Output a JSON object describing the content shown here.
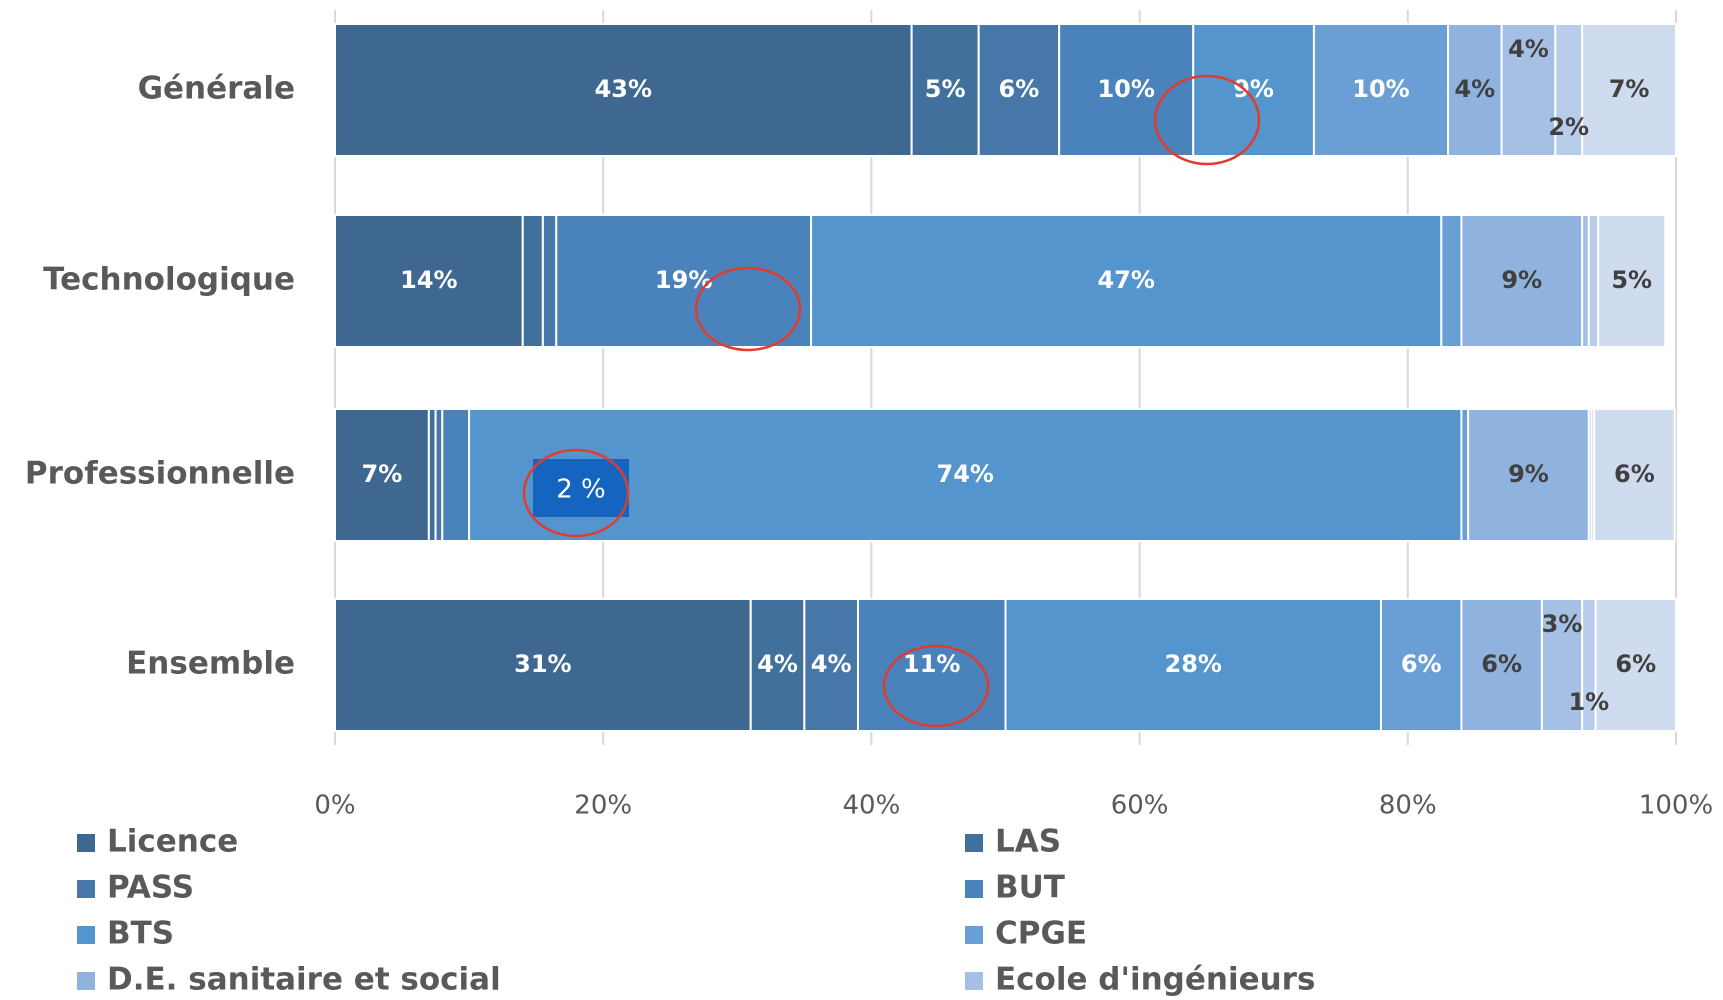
{
  "chart_data": {
    "type": "stacked-bar-horizontal",
    "categories": [
      "Générale",
      "Technologique",
      "Professionnelle",
      "Ensemble"
    ],
    "series": [
      {
        "name": "Licence",
        "color": "#3e6890",
        "values": [
          43,
          14,
          7,
          31
        ],
        "value_labels": [
          "43%",
          "14%",
          "7%",
          "31%"
        ]
      },
      {
        "name": "LAS",
        "color": "#41709c",
        "values": [
          5,
          1.5,
          0.5,
          4
        ],
        "value_labels": [
          "5%",
          null,
          null,
          "4%"
        ]
      },
      {
        "name": "PASS",
        "color": "#4677a8",
        "values": [
          6,
          1,
          0.5,
          4
        ],
        "value_labels": [
          "6%",
          null,
          null,
          "4%"
        ]
      },
      {
        "name": "BUT",
        "color": "#4a82bb",
        "values": [
          10,
          19,
          2,
          11
        ],
        "value_labels": [
          "10%",
          "19%",
          null,
          "11%"
        ]
      },
      {
        "name": "BTS",
        "color": "#5595ce",
        "values": [
          9,
          47,
          74,
          28
        ],
        "value_labels": [
          "9%",
          "47%",
          "74%",
          "28%"
        ]
      },
      {
        "name": "CPGE",
        "color": "#6a9fd6",
        "values": [
          10,
          1.5,
          0.5,
          6
        ],
        "value_labels": [
          "10%",
          null,
          null,
          "6%"
        ]
      },
      {
        "name": "D.E. sanitaire et social",
        "color": "#8fb3de",
        "values": [
          4,
          9,
          9,
          6
        ],
        "value_labels": [
          "4%",
          "9%",
          "9%",
          "6%"
        ]
      },
      {
        "name": "Ecole d'ingénieurs",
        "color": "#a5c0e4",
        "values": [
          4,
          0.5,
          0.2,
          3
        ],
        "value_labels": [
          "4%",
          null,
          null,
          "3%"
        ]
      },
      {
        "color": "#b8cdea",
        "values": [
          2,
          0.7,
          0.2,
          1
        ],
        "value_labels": [
          "2%",
          null,
          null,
          "1%"
        ]
      },
      {
        "color": "#cfdcef",
        "values": [
          7,
          5,
          6,
          6
        ],
        "value_labels": [
          "7%",
          "5%",
          "6%",
          "6%"
        ]
      }
    ],
    "annotation": "2 %",
    "xlim": [
      0,
      100
    ],
    "xticks": [
      {
        "value": 0,
        "label": "0%"
      },
      {
        "value": 20,
        "label": "20%"
      },
      {
        "value": 40,
        "label": "40%"
      },
      {
        "value": 60,
        "label": "60%"
      },
      {
        "value": 80,
        "label": "80%"
      },
      {
        "value": 100,
        "label": "100%"
      }
    ],
    "grid": true
  }
}
